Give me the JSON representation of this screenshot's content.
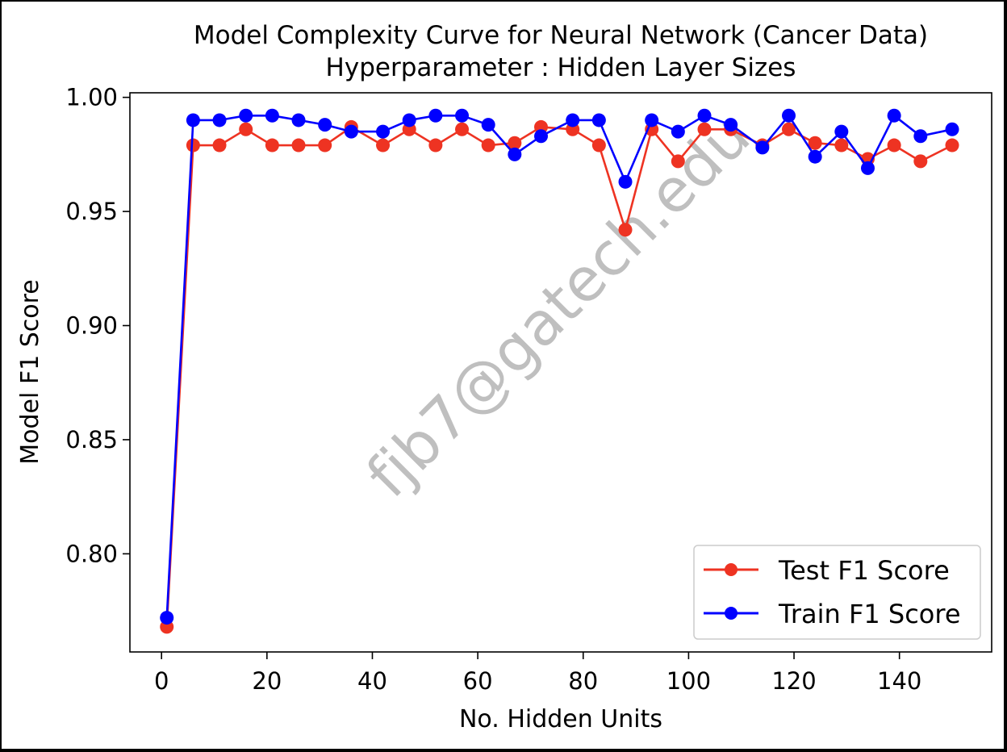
{
  "chart_data": {
    "type": "line",
    "title": "Model Complexity Curve for Neural Network (Cancer Data)",
    "subtitle": "Hyperparameter : Hidden Layer Sizes",
    "xlabel": "No. Hidden Units",
    "ylabel": "Model F1 Score",
    "xlim": [
      -6,
      157.5
    ],
    "ylim": [
      0.757,
      1.002
    ],
    "xticks": [
      0,
      20,
      40,
      60,
      80,
      100,
      120,
      140
    ],
    "yticks": [
      0.8,
      0.85,
      0.9,
      0.95,
      1.0
    ],
    "xtick_labels": [
      "0",
      "20",
      "40",
      "60",
      "80",
      "100",
      "120",
      "140"
    ],
    "ytick_labels": [
      "0.80",
      "0.85",
      "0.90",
      "0.95",
      "1.00"
    ],
    "grid": false,
    "legend_position": "lower-right",
    "x": [
      1,
      6,
      11,
      16,
      21,
      26,
      31,
      36,
      42,
      47,
      52,
      57,
      62,
      67,
      72,
      78,
      83,
      88,
      93,
      98,
      103,
      108,
      114,
      119,
      124,
      129,
      134,
      139,
      144,
      150
    ],
    "series": [
      {
        "name": "Test F1 Score",
        "color": "#ee3322",
        "values": [
          0.768,
          0.979,
          0.979,
          0.986,
          0.979,
          0.979,
          0.979,
          0.987,
          0.979,
          0.986,
          0.979,
          0.986,
          0.979,
          0.98,
          0.987,
          0.986,
          0.979,
          0.942,
          0.986,
          0.972,
          0.986,
          0.986,
          0.979,
          0.986,
          0.98,
          0.979,
          0.973,
          0.979,
          0.972,
          0.979
        ]
      },
      {
        "name": "Train F1 Score",
        "color": "#0000ff",
        "values": [
          0.772,
          0.99,
          0.99,
          0.992,
          0.992,
          0.99,
          0.988,
          0.985,
          0.985,
          0.99,
          0.992,
          0.992,
          0.988,
          0.975,
          0.983,
          0.99,
          0.99,
          0.963,
          0.99,
          0.985,
          0.992,
          0.988,
          0.978,
          0.992,
          0.974,
          0.985,
          0.969,
          0.992,
          0.983,
          0.986
        ]
      }
    ]
  },
  "watermark": "fjb7@gatech.edu"
}
